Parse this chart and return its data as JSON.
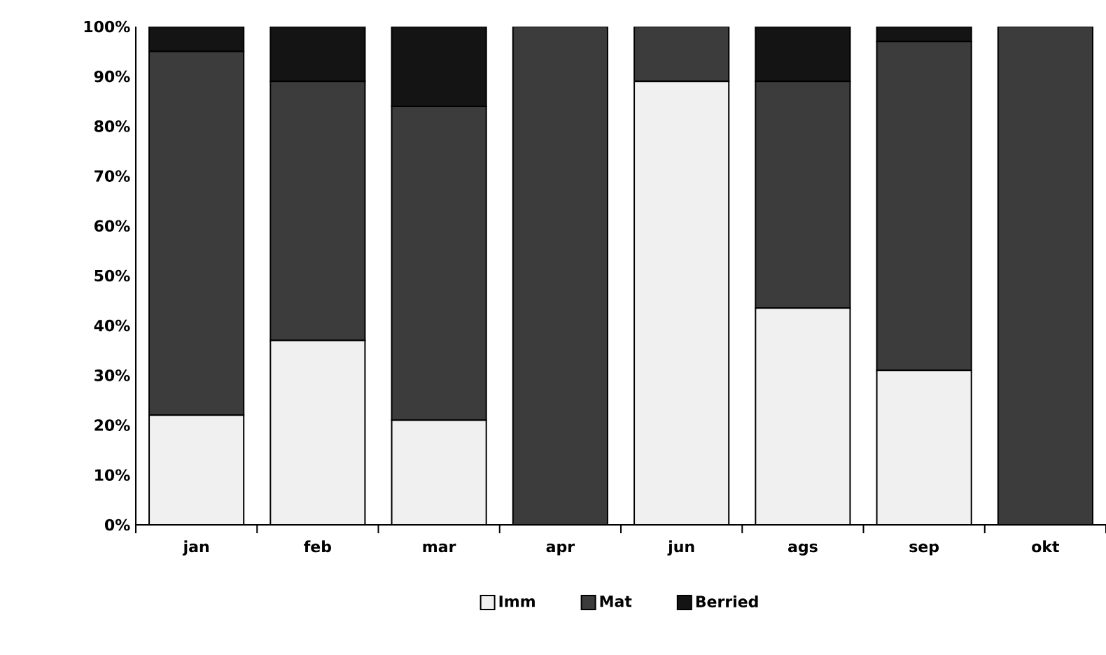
{
  "chart_data": {
    "type": "bar",
    "stacked": true,
    "categories": [
      "jan",
      "feb",
      "mar",
      "apr",
      "jun",
      "ags",
      "sep",
      "okt"
    ],
    "series": [
      {
        "name": "Imm",
        "color": "#f0f0f0",
        "values": [
          22,
          37,
          21,
          0,
          89,
          43.5,
          31,
          0
        ]
      },
      {
        "name": "Mat",
        "color": "#3c3c3c",
        "values": [
          73,
          52,
          63,
          100,
          11,
          45.5,
          66,
          100
        ]
      },
      {
        "name": "Berried",
        "color": "#141414",
        "values": [
          5,
          11,
          16,
          0,
          0,
          11,
          3,
          0
        ]
      }
    ],
    "ylim": [
      0,
      100
    ],
    "yticks": [
      {
        "value": 0,
        "label": "0%"
      },
      {
        "value": 10,
        "label": "10%"
      },
      {
        "value": 20,
        "label": "20%"
      },
      {
        "value": 30,
        "label": "30%"
      },
      {
        "value": 40,
        "label": "40%"
      },
      {
        "value": 50,
        "label": "50%"
      },
      {
        "value": 60,
        "label": "60%"
      },
      {
        "value": 70,
        "label": "70%"
      },
      {
        "value": 80,
        "label": "80%"
      },
      {
        "value": 90,
        "label": "90%"
      },
      {
        "value": 100,
        "label": "100%"
      }
    ],
    "grid": false,
    "legend": "bottom"
  }
}
